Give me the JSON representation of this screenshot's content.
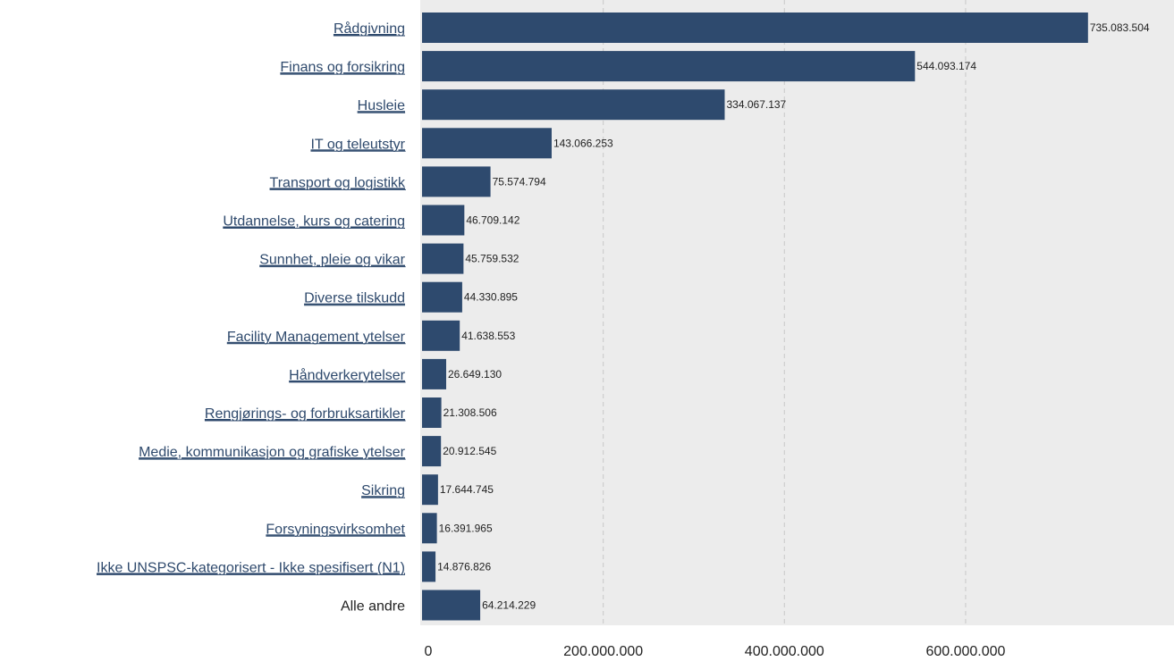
{
  "chart_data": {
    "type": "bar",
    "orientation": "horizontal",
    "title": "",
    "xlabel": "",
    "ylabel": "",
    "xlim": [
      0,
      830000000
    ],
    "grid": "vertical dashed",
    "bar_color": "#2e4a6e",
    "plot_background": "#ececec",
    "categories": [
      "Rådgivning",
      "Finans og forsikring",
      "Husleie",
      "IT og teleutstyr",
      "Transport og logistikk",
      "Utdannelse, kurs og catering",
      "Sunnhet, pleie og vikar",
      "Diverse tilskudd",
      "Facility Management ytelser",
      "Håndverkerytelser",
      "Rengjørings- og forbruksartikler",
      "Medie, kommunikasjon og grafiske ytelser",
      "Sikring",
      "Forsyningsvirksomhet",
      "Ikke UNSPSC-kategorisert - Ikke spesifisert (N1)",
      "Alle andre"
    ],
    "values": [
      735083504,
      544093174,
      334067137,
      143066253,
      75574794,
      46709142,
      45759532,
      44330895,
      41638553,
      26649130,
      21308506,
      20912545,
      17644745,
      16391965,
      14876826,
      64214229
    ],
    "value_labels": [
      "735.083.504",
      "544.093.174",
      "334.067.137",
      "143.066.253",
      "75.574.794",
      "46.709.142",
      "45.759.532",
      "44.330.895",
      "41.638.553",
      "26.649.130",
      "21.308.506",
      "20.912.545",
      "17.644.745",
      "16.391.965",
      "14.876.826",
      "64.214.229"
    ],
    "linked_categories": [
      true,
      true,
      true,
      true,
      true,
      true,
      true,
      true,
      true,
      true,
      true,
      true,
      true,
      true,
      true,
      false
    ],
    "x_ticks": [
      {
        "value": 0,
        "label": "0"
      },
      {
        "value": 200000000,
        "label": "200.000.000"
      },
      {
        "value": 400000000,
        "label": "400.000.000"
      },
      {
        "value": 600000000,
        "label": "600.000.000"
      }
    ]
  }
}
